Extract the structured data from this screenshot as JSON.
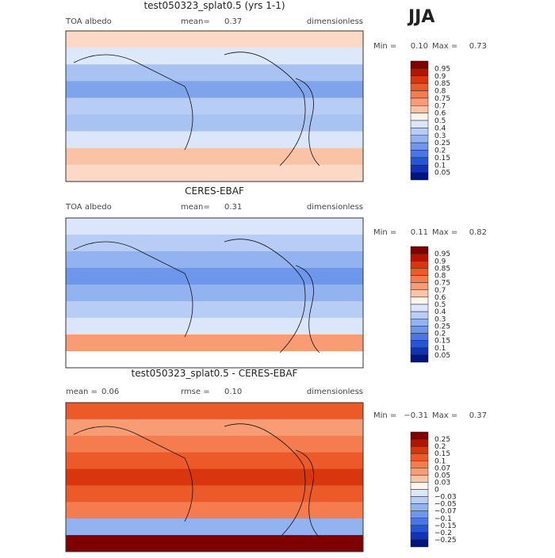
{
  "header": {
    "season": "JJA"
  },
  "panels": [
    {
      "title": "test050323_splat0.5 (yrs 1-1)",
      "stats": [
        {
          "label": "TOA albedo"
        },
        {
          "label": "mean=",
          "value": "0.37"
        },
        {
          "label": "dimensionless"
        }
      ],
      "range": {
        "min_label": "Min =",
        "min": "0.10",
        "max_label": "Max =",
        "max": "0.73"
      },
      "colorbar": {
        "labels": [
          "0.95",
          "0.9",
          "0.85",
          "0.8",
          "0.75",
          "0.7",
          "0.6",
          "0.5",
          "0.4",
          "0.3",
          "0.25",
          "0.2",
          "0.15",
          "0.1",
          "0.05"
        ],
        "colors": [
          "#7f0000",
          "#b31500",
          "#d8360f",
          "#ec5a2a",
          "#f47c4f",
          "#f89c76",
          "#fbc3a6",
          "#fff4ea",
          "#dbe6fb",
          "#b7cdf6",
          "#93b3f0",
          "#6e96ea",
          "#4a78e3",
          "#2755d8",
          "#1033b8",
          "#001580"
        ]
      }
    },
    {
      "title": "CERES-EBAF",
      "stats": [
        {
          "label": "TOA albedo"
        },
        {
          "label": "mean=",
          "value": "0.31"
        },
        {
          "label": "dimensionless"
        }
      ],
      "range": {
        "min_label": "Min =",
        "min": "0.11",
        "max_label": "Max =",
        "max": "0.82"
      },
      "colorbar": {
        "labels": [
          "0.95",
          "0.9",
          "0.85",
          "0.8",
          "0.75",
          "0.7",
          "0.6",
          "0.5",
          "0.4",
          "0.3",
          "0.25",
          "0.2",
          "0.15",
          "0.1",
          "0.05"
        ],
        "colors": [
          "#7f0000",
          "#b31500",
          "#d8360f",
          "#ec5a2a",
          "#f47c4f",
          "#f89c76",
          "#fbc3a6",
          "#fff4ea",
          "#dbe6fb",
          "#b7cdf6",
          "#93b3f0",
          "#6e96ea",
          "#4a78e3",
          "#2755d8",
          "#1033b8",
          "#001580"
        ]
      }
    },
    {
      "title": "test050323_splat0.5 - CERES-EBAF",
      "stats": [
        {
          "label": "mean =",
          "value": "0.06"
        },
        {
          "label": "rmse =",
          "value": "0.10"
        },
        {
          "label": "dimensionless"
        }
      ],
      "range": {
        "min_label": "Min =",
        "min": "−0.31",
        "max_label": "Max =",
        "max": "0.37"
      },
      "colorbar": {
        "labels": [
          "0.25",
          "0.2",
          "0.15",
          "0.1",
          "0.07",
          "0.05",
          "0.03",
          "0",
          "−0.03",
          "−0.05",
          "−0.07",
          "−0.1",
          "−0.15",
          "−0.2",
          "−0.25"
        ],
        "colors": [
          "#7f0000",
          "#b31500",
          "#d8360f",
          "#ec5a2a",
          "#f47c4f",
          "#f89c76",
          "#fbc3a6",
          "#fff4ea",
          "#dbe6fb",
          "#b7cdf6",
          "#93b3f0",
          "#6e96ea",
          "#4a78e3",
          "#2755d8",
          "#1033b8",
          "#001580"
        ]
      }
    }
  ]
}
